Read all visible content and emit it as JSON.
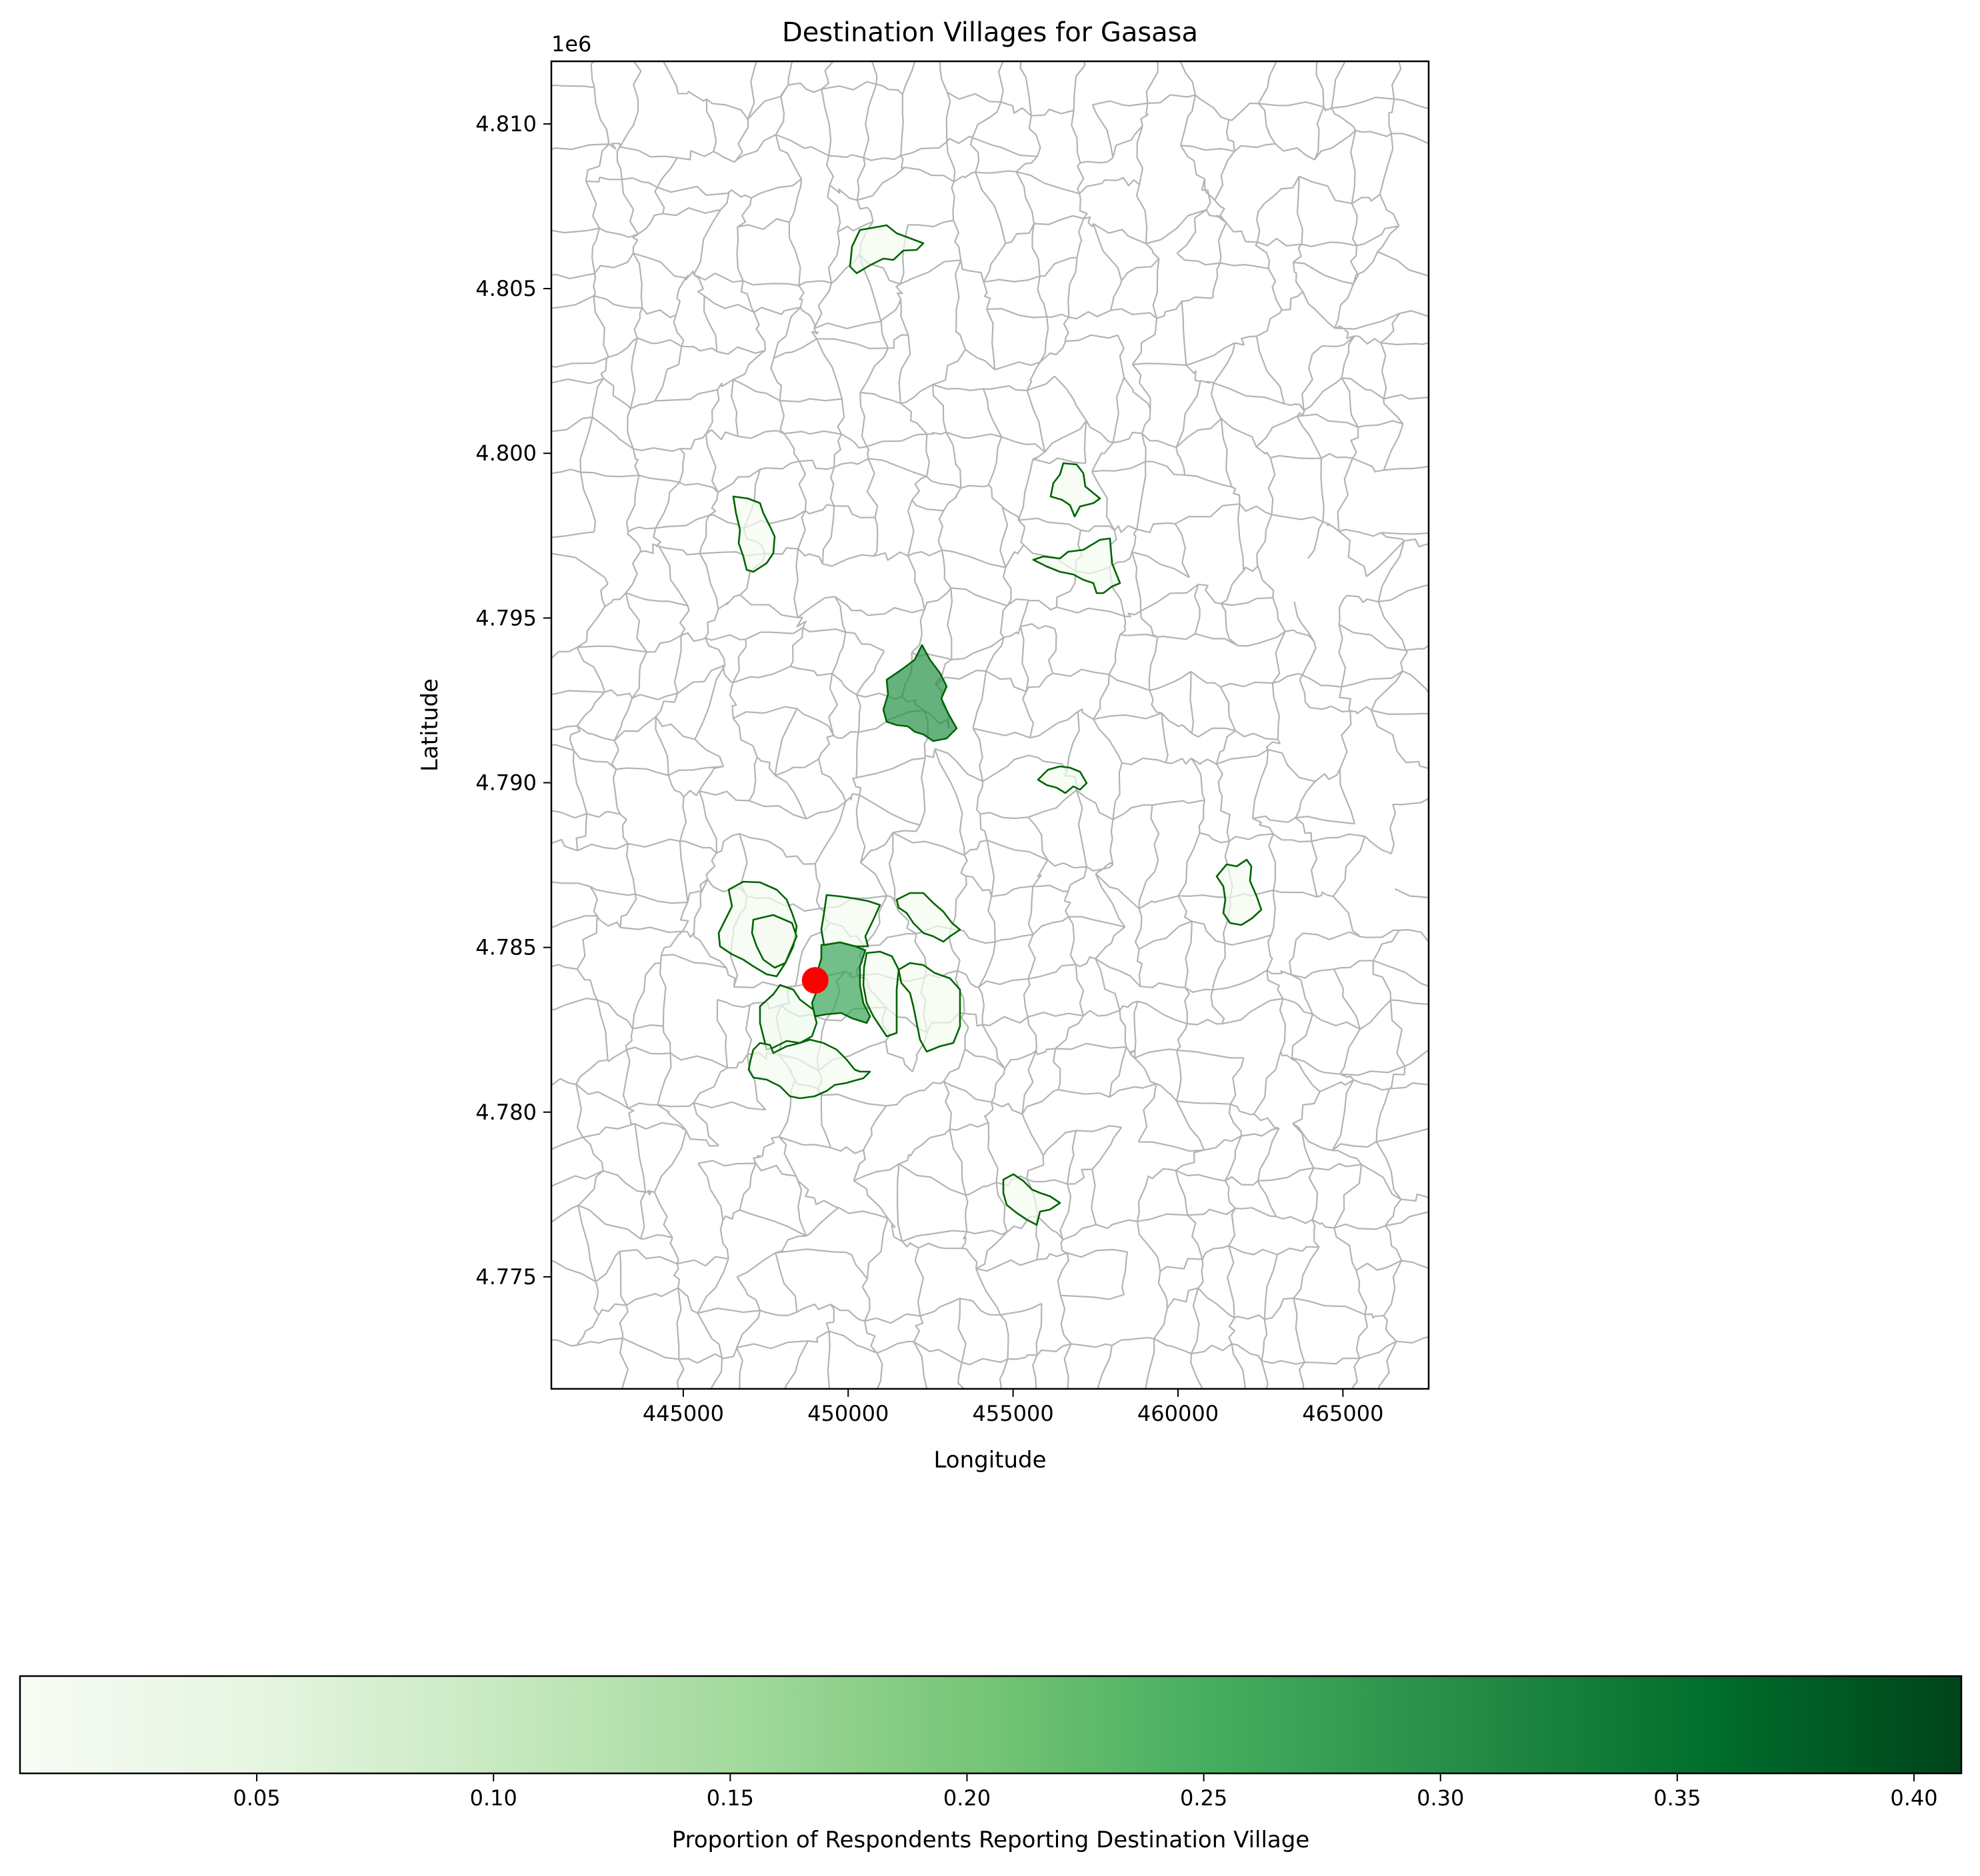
{
  "map": {
    "title": "Destination Villages for Gasasa",
    "xlabel": "Longitude",
    "ylabel": "Latitude",
    "offset_text": "1e6",
    "xlim": [
      441000,
      467600
    ],
    "ylim": [
      4771600,
      4811900
    ],
    "x_ticks": [
      "445000",
      "450000",
      "455000",
      "460000",
      "465000"
    ],
    "y_ticks": [
      "4.775",
      "4.780",
      "4.785",
      "4.790",
      "4.795",
      "4.800",
      "4.805",
      "4.810"
    ],
    "origin_marker": {
      "label": "Gasasa",
      "x": 449000,
      "y": 4784000,
      "color": "#ff0000"
    },
    "boundary_color": "#b3b3b3",
    "highlight_edge_color": "#006400"
  },
  "chart_data": {
    "type": "choropleth",
    "title": "Destination Villages for Gasasa",
    "xlabel": "Longitude",
    "ylabel": "Latitude",
    "x_range": [
      441000,
      467600
    ],
    "y_range": [
      4771600,
      4811900
    ],
    "origin": {
      "name": "Gasasa",
      "x": 449000,
      "y": 4784000
    },
    "colormap": "Greens",
    "color_range": [
      0.0,
      0.41
    ],
    "destinations": [
      {
        "x": 452500,
        "y": 4792700,
        "value": 0.3
      },
      {
        "x": 450100,
        "y": 4784200,
        "value": 0.27
      },
      {
        "x": 451700,
        "y": 4806100,
        "value": 0.01
      },
      {
        "x": 447500,
        "y": 4797800,
        "value": 0.01
      },
      {
        "x": 456900,
        "y": 4798800,
        "value": 0.01
      },
      {
        "x": 457300,
        "y": 4796500,
        "value": 0.01
      },
      {
        "x": 456600,
        "y": 4790100,
        "value": 0.01
      },
      {
        "x": 462000,
        "y": 4786700,
        "value": 0.01
      },
      {
        "x": 452700,
        "y": 4786000,
        "value": 0.01
      },
      {
        "x": 451100,
        "y": 4785600,
        "value": 0.01
      },
      {
        "x": 447700,
        "y": 4786300,
        "value": 0.01
      },
      {
        "x": 448100,
        "y": 4785200,
        "value": 0.01
      },
      {
        "x": 451700,
        "y": 4783600,
        "value": 0.01
      },
      {
        "x": 452800,
        "y": 4783200,
        "value": 0.01
      },
      {
        "x": 448100,
        "y": 4782600,
        "value": 0.02
      },
      {
        "x": 449400,
        "y": 4781300,
        "value": 0.01
      },
      {
        "x": 455800,
        "y": 4777500,
        "value": 0.01
      }
    ]
  },
  "colorbar": {
    "label": "Proportion of Respondents Reporting Destination Village",
    "ticks": [
      "0.05",
      "0.10",
      "0.15",
      "0.20",
      "0.25",
      "0.30",
      "0.35",
      "0.40"
    ],
    "tick_values": [
      0.05,
      0.1,
      0.15,
      0.2,
      0.25,
      0.3,
      0.35,
      0.4
    ],
    "range": [
      0.0,
      0.41
    ],
    "stops": [
      "#f7fcf5",
      "#e5f5e0",
      "#c7e9c0",
      "#a1d99b",
      "#74c476",
      "#41ab5d",
      "#238b45",
      "#006d2c",
      "#00441b"
    ]
  }
}
